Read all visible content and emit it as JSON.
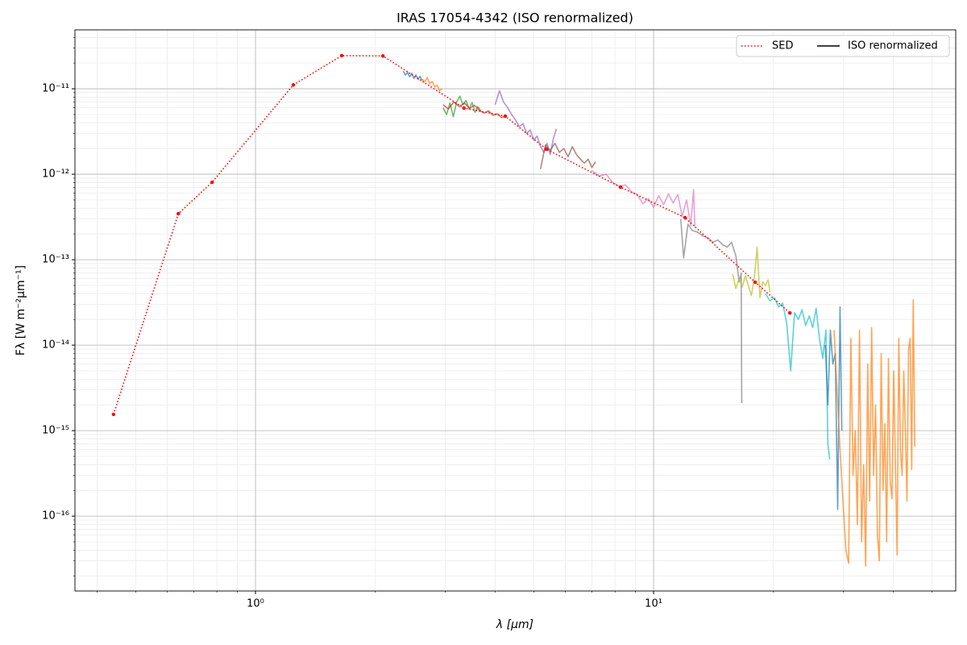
{
  "chart_data": {
    "type": "line",
    "title": "IRAS 17054-4342 (ISO renormalized)",
    "x_label": "λ [μm]",
    "y_label": "Fλ [W m⁻²μm⁻¹]",
    "log_x": true,
    "log_y": true,
    "grid": true,
    "legend_position": "upper right",
    "xlim": [
      0.352,
      57.4
    ],
    "ylim": [
      1.33e-17,
      4.89e-11
    ],
    "xticks": [
      {
        "value": 1,
        "label": "10⁰"
      },
      {
        "value": 10,
        "label": "10¹"
      }
    ],
    "xticks_minor": [
      0.4,
      0.5,
      0.6,
      0.7,
      0.8,
      0.9,
      2,
      3,
      4,
      5,
      6,
      7,
      8,
      9,
      20,
      30,
      40,
      50
    ],
    "yticks": [
      {
        "value": 1e-16,
        "label": "10⁻¹⁶"
      },
      {
        "value": 1e-15,
        "label": "10⁻¹⁵"
      },
      {
        "value": 1e-14,
        "label": "10⁻¹⁴"
      },
      {
        "value": 1e-13,
        "label": "10⁻¹³"
      },
      {
        "value": 1e-12,
        "label": "10⁻¹²"
      },
      {
        "value": 1e-11,
        "label": "10⁻¹¹"
      }
    ],
    "yticks_minor": [
      2e-17,
      3e-17,
      4e-17,
      5e-17,
      6e-17,
      7e-17,
      8e-17,
      9e-17,
      2e-16,
      3e-16,
      4e-16,
      5e-16,
      6e-16,
      7e-16,
      8e-16,
      9e-16,
      2e-15,
      3e-15,
      4e-15,
      5e-15,
      6e-15,
      7e-15,
      8e-15,
      9e-15,
      2e-14,
      3e-14,
      4e-14,
      5e-14,
      6e-14,
      7e-14,
      8e-14,
      9e-14,
      2e-13,
      3e-13,
      4e-13,
      5e-13,
      6e-13,
      7e-13,
      8e-13,
      9e-13,
      2e-12,
      3e-12,
      4e-12,
      5e-12,
      6e-12,
      7e-12,
      8e-12,
      9e-12,
      2e-11,
      3e-11,
      4e-11
    ],
    "series": [
      {
        "name": "SED",
        "color": "#ff0000",
        "style": "dotted",
        "markers": true,
        "x": [
          0.44,
          0.64,
          0.778,
          1.245,
          1.647,
          2.09,
          3.34,
          4.24,
          5.38,
          8.26,
          12.0,
          18.0,
          22.0
        ],
        "values": [
          1.55e-15,
          3.45e-13,
          8.05e-13,
          1.11e-11,
          2.44e-11,
          2.42e-11,
          5.94e-12,
          4.78e-12,
          1.96e-12,
          7.06e-13,
          3.1e-13,
          5.45e-14,
          2.38e-14
        ]
      },
      {
        "name": "ISO renormalized",
        "color": "#000000",
        "style": "solid",
        "segments": [
          {
            "color": "#1f77b4",
            "x": [
              2.35,
              2.38,
              2.41,
              2.44,
              2.47,
              2.5,
              2.53,
              2.56,
              2.59,
              2.62
            ],
            "values": [
              1.61e-11,
              1.45e-11,
              1.55e-11,
              1.38e-11,
              1.52e-11,
              1.32e-11,
              1.45e-11,
              1.28e-11,
              1.4e-11,
              1.24e-11
            ]
          },
          {
            "color": "#ff7f0e",
            "x": [
              2.62,
              2.66,
              2.7,
              2.74,
              2.78,
              2.82,
              2.86,
              2.9,
              2.94
            ],
            "values": [
              1.3e-11,
              1.2e-11,
              1.35e-11,
              1.15e-11,
              1.22e-11,
              1.05e-11,
              1.1e-11,
              9.5e-12,
              1e-11
            ]
          },
          {
            "color": "#2ca02c",
            "x": [
              2.96,
              3.02,
              3.08,
              3.14,
              3.2,
              3.26,
              3.32,
              3.38,
              3.44,
              3.5,
              3.56,
              3.62,
              3.68
            ],
            "values": [
              6e-12,
              5e-12,
              6.8e-12,
              4.7e-12,
              7e-12,
              8.2e-12,
              6.5e-12,
              7.3e-12,
              5.8e-12,
              6.9e-12,
              5.3e-12,
              6.2e-12,
              5.5e-12
            ]
          },
          {
            "color": "#d62728",
            "x": [
              2.96,
              3.05,
              3.15,
              3.25,
              3.35,
              3.45,
              3.55,
              3.65,
              3.75,
              3.85,
              3.95,
              4.05,
              4.15,
              4.25
            ],
            "values": [
              6.5e-12,
              5.8e-12,
              7e-12,
              6.2e-12,
              6.8e-12,
              5.9e-12,
              6.4e-12,
              5.6e-12,
              5.2e-12,
              5.5e-12,
              4.9e-12,
              5.1e-12,
              4.6e-12,
              4.8e-12
            ]
          },
          {
            "color": "#9467bd",
            "x": [
              4.0,
              4.1,
              4.2,
              4.3,
              4.4,
              4.5,
              4.6,
              4.7,
              4.8,
              4.9,
              5.0,
              5.1,
              5.2,
              5.3,
              5.4,
              5.5,
              5.6,
              5.7
            ],
            "values": [
              6.5e-12,
              9.5e-12,
              7e-12,
              6e-12,
              5e-12,
              4.3e-12,
              3.6e-12,
              3.9e-12,
              3e-12,
              3.3e-12,
              2.5e-12,
              2.8e-12,
              2.1e-12,
              1.8e-12,
              2.3e-12,
              1.7e-12,
              2.6e-12,
              3.4e-12
            ]
          },
          {
            "color": "#8c564b",
            "x": [
              5.2,
              5.35,
              5.5,
              5.65,
              5.8,
              5.95,
              6.1,
              6.25,
              6.4,
              6.55,
              6.7,
              6.85,
              7.0,
              7.15
            ],
            "values": [
              1.15e-12,
              2.2e-12,
              1.9e-12,
              2.3e-12,
              1.8e-12,
              2e-12,
              1.6e-12,
              2.1e-12,
              1.7e-12,
              1.5e-12,
              1.35e-12,
              1.5e-12,
              1.2e-12,
              1.4e-12
            ]
          },
          {
            "color": "#e377c2",
            "x": [
              7.0,
              7.3,
              7.6,
              7.9,
              8.2,
              8.5,
              8.8,
              9.1,
              9.4,
              9.7,
              10.0,
              10.3,
              10.6,
              10.9,
              11.2,
              11.5,
              11.8,
              12.1,
              12.4,
              12.6,
              12.7
            ],
            "values": [
              1.1e-12,
              9.5e-13,
              1e-12,
              8e-13,
              7.2e-13,
              7.5e-13,
              6.2e-13,
              5.8e-13,
              4.5e-13,
              5.2e-13,
              4.1e-13,
              5.6e-13,
              4.4e-13,
              5.9e-13,
              4.6e-13,
              5.8e-13,
              3.2e-13,
              5e-13,
              2.5e-13,
              6.6e-13,
              2.4e-13
            ]
          },
          {
            "color": "#7f7f7f",
            "x": [
              11.7,
              11.9,
              12.2,
              12.5,
              12.9,
              13.3,
              13.7,
              14.1,
              14.5,
              14.9,
              15.3,
              15.7,
              16.1,
              16.4,
              16.6,
              16.65
            ],
            "values": [
              3e-13,
              1.05e-13,
              2.6e-13,
              2.2e-13,
              2.1e-13,
              1.9e-13,
              1.8e-13,
              1.6e-13,
              1.7e-13,
              1.5e-13,
              1.4e-13,
              1.6e-13,
              1.1e-13,
              5.5e-14,
              7e-14,
              2.1e-15
            ]
          },
          {
            "color": "#bcbd22",
            "x": [
              15.8,
              16.1,
              16.4,
              16.7,
              17.0,
              17.3,
              17.6,
              17.9,
              18.2,
              18.5,
              18.8,
              19.1,
              19.4,
              19.6
            ],
            "values": [
              6.8e-14,
              4.6e-14,
              6e-14,
              4.8e-14,
              6.5e-14,
              5e-14,
              3.8e-14,
              6e-14,
              1.4e-13,
              3.6e-14,
              5.5e-14,
              5e-14,
              5.8e-14,
              4.2e-14
            ]
          },
          {
            "color": "#17becf",
            "x": [
              19.1,
              19.6,
              20.1,
              20.6,
              21.1,
              21.6,
              22.1,
              22.6,
              23.1,
              23.6,
              24.1,
              24.6,
              25.1,
              25.6,
              26.1,
              26.6,
              27.1,
              27.4,
              27.7
            ],
            "values": [
              4e-14,
              3.3e-14,
              3.6e-14,
              2.8e-14,
              3.1e-14,
              1.8e-14,
              5e-15,
              2.4e-14,
              2e-14,
              2.6e-14,
              1.7e-14,
              2.2e-14,
              1.6e-14,
              2.7e-14,
              1.2e-14,
              7e-15,
              1.5e-14,
              7e-16,
              4.6e-16
            ]
          },
          {
            "color": "#1f77b4",
            "x": [
              27.0,
              27.4,
              27.8,
              28.2,
              28.6,
              29.0,
              29.4,
              29.7
            ],
            "values": [
              1e-14,
              2e-15,
              1.5e-14,
              6e-15,
              8e-15,
              1.2e-16,
              2.8e-14,
              1e-15
            ]
          },
          {
            "color": "#ff7f0e",
            "x": [
              28.4,
              28.9,
              29.4,
              29.9,
              30.4,
              30.9,
              31.3,
              31.7,
              32.1,
              32.5,
              32.9,
              33.3,
              33.7,
              34.1,
              34.5,
              34.9,
              35.3,
              35.7,
              36.1,
              36.5,
              36.9,
              37.3,
              37.7,
              38.1,
              38.5,
              38.9,
              39.3,
              39.7,
              40.1,
              40.5,
              40.9,
              41.3,
              41.7,
              42.1,
              42.5,
              42.9,
              43.3,
              43.7,
              44.1,
              44.5,
              44.9,
              45.3
            ],
            "values": [
              1.5e-14,
              3e-15,
              6e-16,
              1.5e-16,
              4e-17,
              2.8e-17,
              1.2e-14,
              3e-16,
              1e-15,
              8e-17,
              1.5e-14,
              5e-17,
              4e-16,
              2.6e-17,
              6e-15,
              1.5e-16,
              1.6e-14,
              3e-16,
              2e-15,
              6e-17,
              3e-17,
              8e-15,
              2e-16,
              1.2e-15,
              5e-17,
              7e-15,
              2.5e-16,
              1.6e-16,
              5e-15,
              4e-16,
              3.5e-17,
              1.2e-14,
              6e-16,
              3e-16,
              5e-15,
              1e-15,
              1.5e-16,
              9e-15,
              1.2e-14,
              3.5e-16,
              3.4e-14,
              6.5e-16
            ]
          }
        ]
      }
    ]
  }
}
